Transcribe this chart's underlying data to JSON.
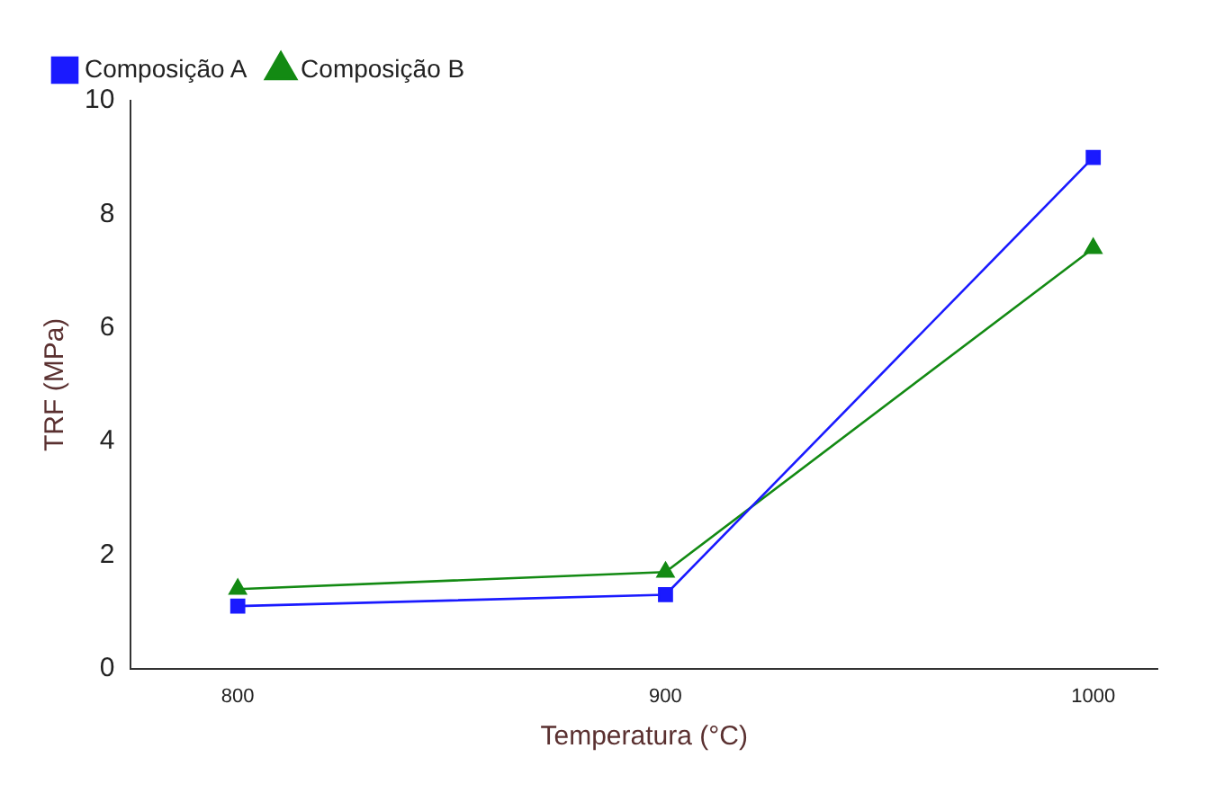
{
  "chart_data": {
    "type": "line",
    "xlabel": "Temperatura (°C)",
    "ylabel": "TRF (MPa)",
    "x": [
      800,
      900,
      1000
    ],
    "series": [
      {
        "name": "Composição A",
        "color": "#1a1aff",
        "values": [
          1.1,
          1.3,
          9.0
        ],
        "marker": "square"
      },
      {
        "name": "Composição B",
        "color": "#138a13",
        "values": [
          1.4,
          1.7,
          7.4
        ],
        "marker": "triangle"
      }
    ],
    "xlim": [
      775,
      1015
    ],
    "xticks": [
      800,
      900,
      1000
    ],
    "ylim": [
      0,
      10
    ],
    "yticks": [
      0,
      2,
      4,
      6,
      8,
      10
    ],
    "grid": false,
    "legend": "top left"
  }
}
